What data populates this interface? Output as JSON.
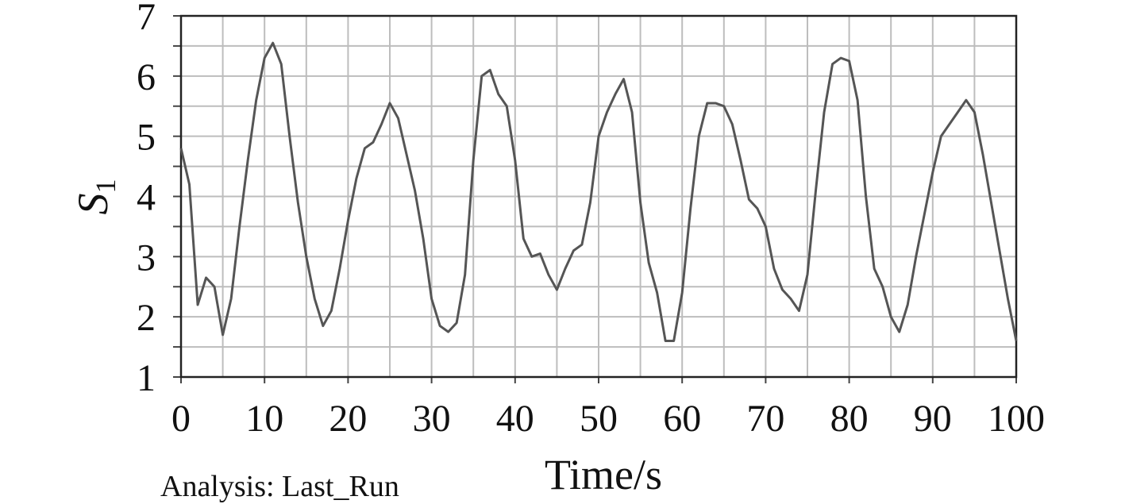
{
  "chart_data": {
    "type": "line",
    "ylabel": {
      "text": "S",
      "subscript": "1"
    },
    "xlabel": "Time/s",
    "annotation": "Analysis: Last_Run",
    "x": [
      0,
      1,
      2,
      3,
      4,
      5,
      6,
      7,
      8,
      9,
      10,
      11,
      12,
      13,
      14,
      15,
      16,
      17,
      18,
      19,
      20,
      21,
      22,
      23,
      24,
      25,
      26,
      27,
      28,
      29,
      30,
      31,
      32,
      33,
      34,
      35,
      36,
      37,
      38,
      39,
      40,
      41,
      42,
      43,
      44,
      45,
      46,
      47,
      48,
      49,
      50,
      51,
      52,
      53,
      54,
      55,
      56,
      57,
      58,
      59,
      60,
      61,
      62,
      63,
      64,
      65,
      66,
      67,
      68,
      69,
      70,
      71,
      72,
      73,
      74,
      75,
      76,
      77,
      78,
      79,
      80,
      81,
      82,
      83,
      84,
      85,
      86,
      87,
      88,
      89,
      90,
      91,
      92,
      93,
      94,
      95,
      96,
      97,
      98,
      99,
      100
    ],
    "series": [
      {
        "name": "S1",
        "color": "#555555",
        "values": [
          4.8,
          4.2,
          2.2,
          2.65,
          2.5,
          1.7,
          2.3,
          3.5,
          4.6,
          5.6,
          6.3,
          6.55,
          6.2,
          5.0,
          3.9,
          3.0,
          2.3,
          1.85,
          2.1,
          2.8,
          3.6,
          4.3,
          4.8,
          4.9,
          5.2,
          5.55,
          5.3,
          4.7,
          4.1,
          3.3,
          2.3,
          1.85,
          1.75,
          1.9,
          2.7,
          4.6,
          6.0,
          6.1,
          5.7,
          5.5,
          4.6,
          3.3,
          3.0,
          3.05,
          2.7,
          2.45,
          2.8,
          3.1,
          3.2,
          3.9,
          5.0,
          5.4,
          5.7,
          5.95,
          5.4,
          3.9,
          2.9,
          2.4,
          1.6,
          1.6,
          2.4,
          3.8,
          5.0,
          5.55,
          5.55,
          5.5,
          5.2,
          4.6,
          3.95,
          3.8,
          3.5,
          2.8,
          2.45,
          2.3,
          2.1,
          2.7,
          4.1,
          5.4,
          6.2,
          6.3,
          6.25,
          5.6,
          4.0,
          2.8,
          2.5,
          2.0,
          1.75,
          2.2,
          3.0,
          3.7,
          4.4,
          5.0,
          5.2,
          5.4,
          5.6,
          5.4,
          4.7,
          3.9,
          3.1,
          2.3,
          1.6
        ]
      }
    ],
    "xlim": [
      0,
      100
    ],
    "xticks": [
      0,
      10,
      20,
      30,
      40,
      50,
      60,
      70,
      80,
      90,
      100
    ],
    "ylim": [
      1,
      7
    ],
    "yticks": [
      1,
      2,
      3,
      4,
      5,
      6,
      7
    ],
    "xgrid": [
      5,
      15,
      25,
      35,
      45,
      55,
      65,
      75,
      85,
      95
    ],
    "ygrid": [
      1.5,
      2.5,
      3.5,
      4.5,
      5.5,
      6.5
    ],
    "grid": true
  }
}
